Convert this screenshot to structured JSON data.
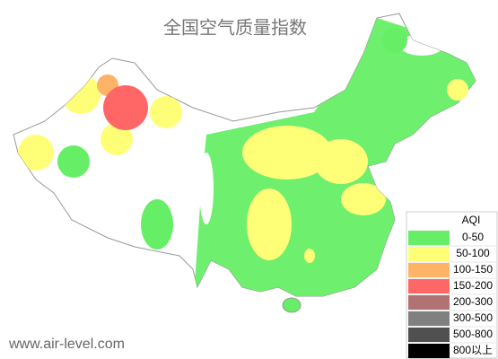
{
  "title": "全国空气质量指数",
  "legend": {
    "title": "AQI",
    "items": [
      {
        "label": "0-50",
        "color": "#66ee66"
      },
      {
        "label": "50-100",
        "color": "#ffff77"
      },
      {
        "label": "100-150",
        "color": "#ffb366"
      },
      {
        "label": "150-200",
        "color": "#ff6666"
      },
      {
        "label": "200-300",
        "color": "#b07272"
      },
      {
        "label": "300-500",
        "color": "#808080"
      },
      {
        "label": "500-800",
        "color": "#505050"
      },
      {
        "label": "800以上",
        "color": "#000000"
      }
    ]
  },
  "watermark": "www.air-level.com"
}
